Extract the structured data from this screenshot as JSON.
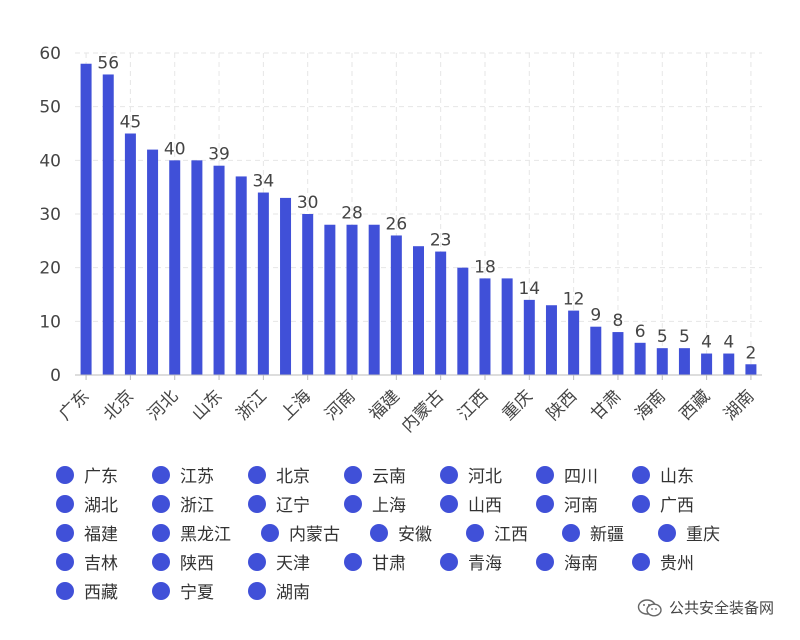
{
  "colors": {
    "bar": "#4050d8",
    "axis": "#bbbbbb",
    "grid": "#e6e6e6",
    "text": "#444444"
  },
  "chart_data": {
    "type": "bar",
    "title": "",
    "xlabel": "",
    "ylabel": "",
    "ylim": [
      0,
      60
    ],
    "yticks": [
      0,
      10,
      20,
      30,
      40,
      50,
      60
    ],
    "grid": true,
    "categories": [
      "广东",
      "江苏",
      "北京",
      "云南",
      "河北",
      "四川",
      "山东",
      "湖北",
      "浙江",
      "辽宁",
      "上海",
      "山西",
      "河南",
      "广西",
      "福建",
      "黑龙江",
      "内蒙古",
      "安徽",
      "江西",
      "新疆",
      "重庆",
      "吉林",
      "陕西",
      "天津",
      "甘肃",
      "青海",
      "海南",
      "贵州",
      "西藏",
      "宁夏",
      "湖南"
    ],
    "values": [
      58,
      56,
      45,
      42,
      40,
      40,
      39,
      37,
      34,
      33,
      30,
      28,
      28,
      28,
      26,
      24,
      23,
      20,
      18,
      18,
      14,
      13,
      12,
      9,
      8,
      6,
      5,
      5,
      4,
      4,
      2
    ],
    "x_tick_labels_shown": [
      "广东",
      "北京",
      "河北",
      "山东",
      "浙江",
      "上海",
      "河南",
      "福建",
      "内蒙古",
      "江西",
      "重庆",
      "陕西",
      "甘肃",
      "海南",
      "西藏",
      "湖南"
    ],
    "data_labels_shown": {
      "江苏": "56",
      "北京": "45",
      "河北": "40",
      "山东": "39",
      "浙江": "34",
      "上海": "30",
      "河南": "28",
      "福建": "26",
      "内蒙古": "23",
      "江西": "18",
      "重庆": "14",
      "陕西": "12",
      "天津": "9",
      "甘肃": "8",
      "青海": "6",
      "海南": "5",
      "贵州": "5",
      "西藏": "4",
      "宁夏": "4",
      "湖南": "2"
    },
    "legend": {
      "placement": "bottom",
      "entries": [
        "广东",
        "江苏",
        "北京",
        "云南",
        "河北",
        "四川",
        "山东",
        "湖北",
        "浙江",
        "辽宁",
        "上海",
        "山西",
        "河南",
        "广西",
        "福建",
        "黑龙江",
        "内蒙古",
        "安徽",
        "江西",
        "新疆",
        "重庆",
        "吉林",
        "陕西",
        "天津",
        "甘肃",
        "青海",
        "海南",
        "贵州",
        "西藏",
        "宁夏",
        "湖南"
      ]
    }
  },
  "watermark": {
    "icon": "wechat-icon",
    "text": "公共安全装备网"
  }
}
